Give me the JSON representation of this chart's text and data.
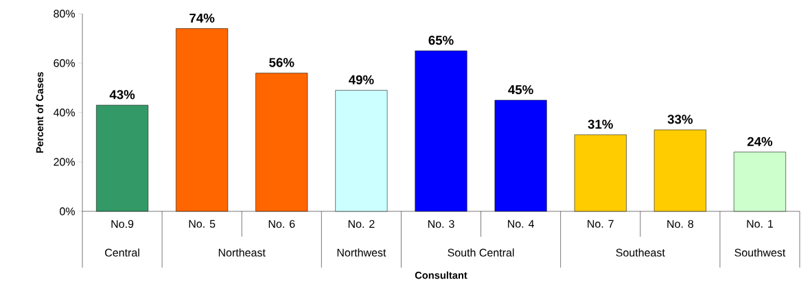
{
  "chart_data": {
    "type": "bar",
    "xlabel": "Consultant",
    "ylabel": "Percent of Cases",
    "categories": [
      "No.9",
      "No. 5",
      "No. 6",
      "No. 2",
      "No. 3",
      "No. 4",
      "No. 7",
      "No. 8",
      "No. 1"
    ],
    "values": [
      43,
      74,
      56,
      49,
      65,
      45,
      31,
      33,
      24
    ],
    "value_labels": [
      "43%",
      "74%",
      "56%",
      "49%",
      "65%",
      "45%",
      "31%",
      "33%",
      "24%"
    ],
    "colors": [
      "#339966",
      "#ff6600",
      "#ff6600",
      "#ccffff",
      "#0000ff",
      "#0000ff",
      "#ffcc00",
      "#ffcc00",
      "#ccffcc"
    ],
    "ylim": [
      0,
      80
    ],
    "yticks": [
      {
        "value": 0,
        "label": "0%"
      },
      {
        "value": 20,
        "label": "20%"
      },
      {
        "value": 40,
        "label": "40%"
      },
      {
        "value": 60,
        "label": "60%"
      },
      {
        "value": 80,
        "label": "80%"
      }
    ],
    "annotations": [
      "Central",
      "Northeast",
      "Northwest",
      "South Central",
      "Southeast",
      "Southwest"
    ]
  }
}
